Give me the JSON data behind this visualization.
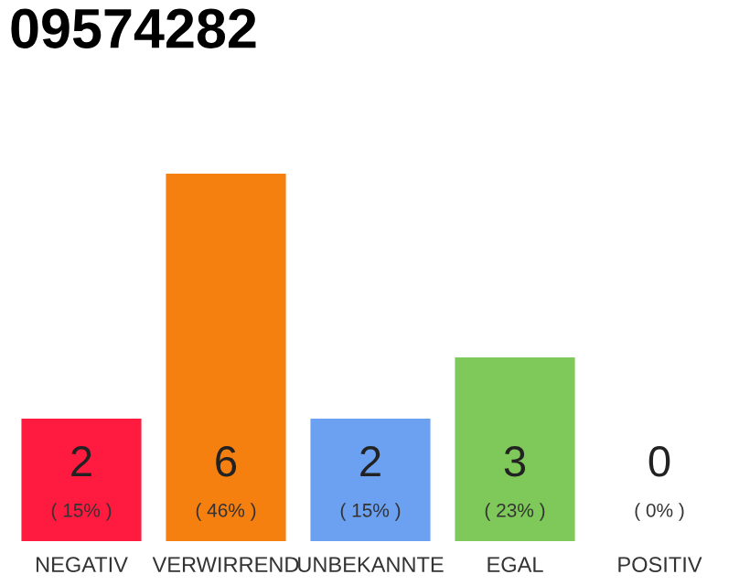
{
  "chart_data": {
    "type": "bar",
    "title": "09574282",
    "categories": [
      "NEGATIV",
      "VERWIRREND",
      "UNBEKANNTE",
      "EGAL",
      "POSITIV"
    ],
    "values": [
      2,
      6,
      2,
      3,
      0
    ],
    "colors": [
      "#ff1a40",
      "#f57f0f",
      "#6ca0f0",
      "#7ec95a",
      "#d0d0d0"
    ],
    "value_labels": [
      "2\n( 15% )",
      "6\n( 46% )",
      "2\n( 15% )",
      "3\n( 23% )",
      "0\n( 0% )"
    ],
    "grid": false,
    "legend": false
  }
}
